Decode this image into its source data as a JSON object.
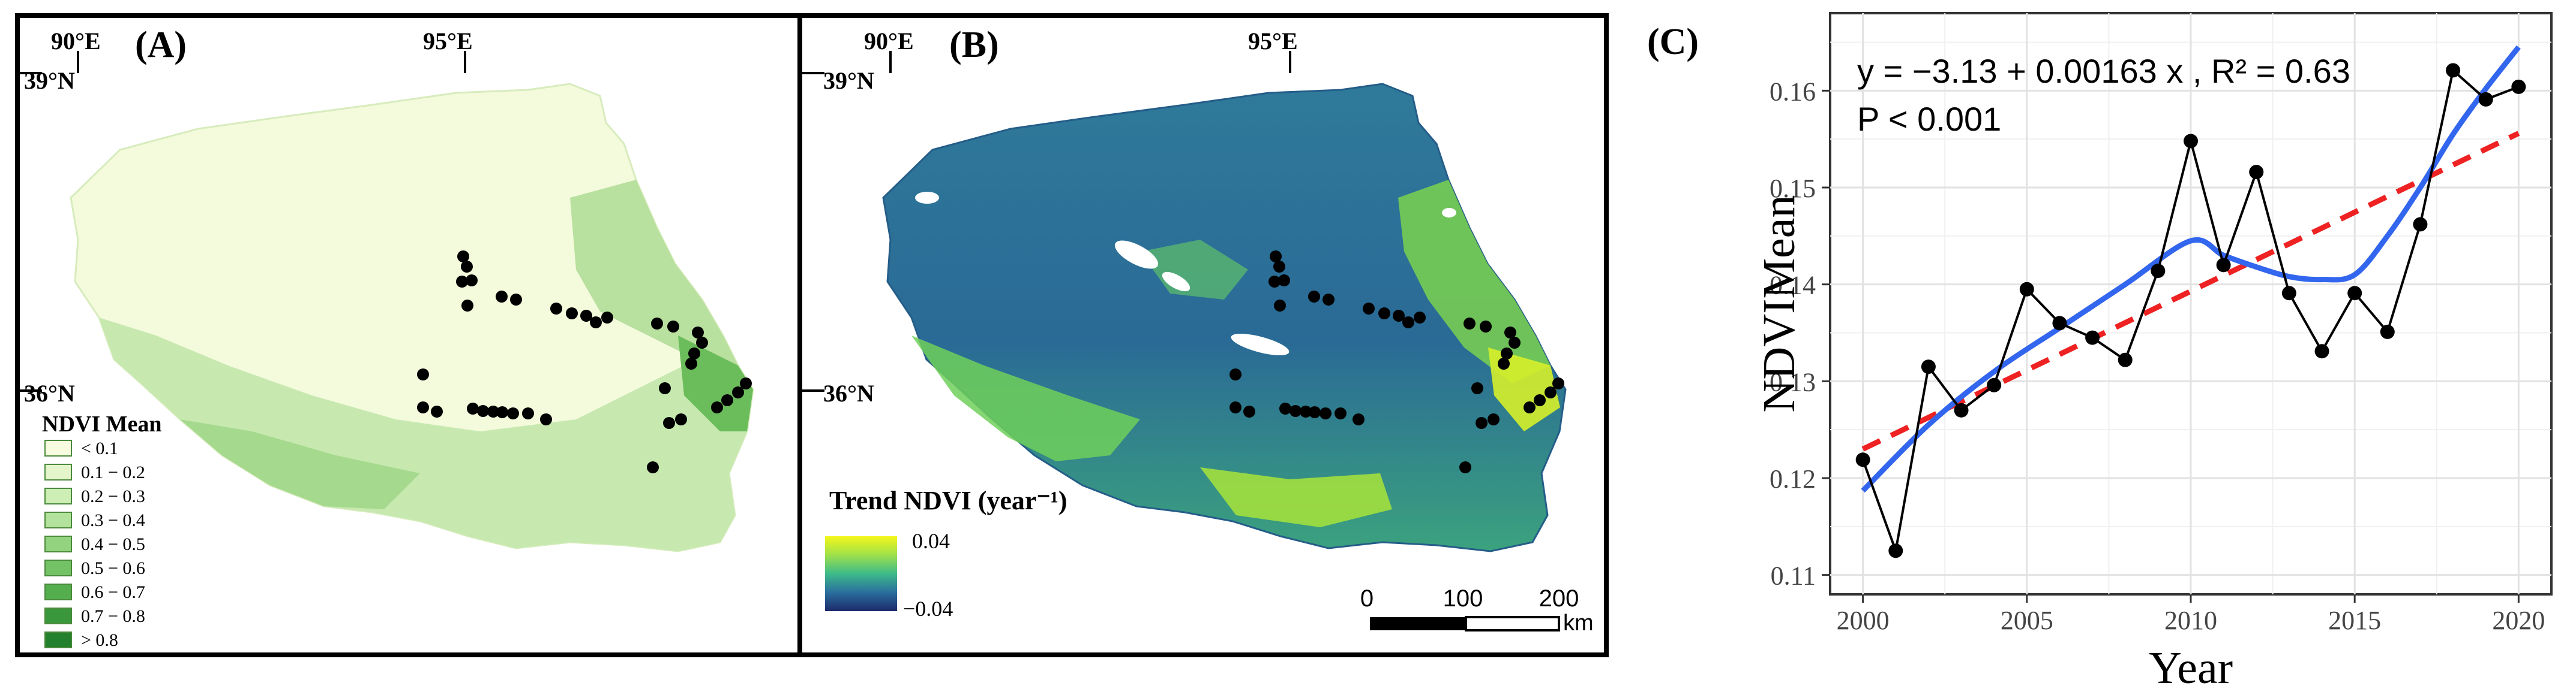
{
  "panel_a": {
    "label": "(A)",
    "lon_labels": [
      "90°E",
      "95°E"
    ],
    "lat_labels": [
      "39°N",
      "36°N"
    ],
    "legend": {
      "title": "NDVI Mean",
      "items": [
        "< 0.1",
        "0.1 − 0.2",
        "0.2 − 0.3",
        "0.3 − 0.4",
        "0.4 − 0.5",
        "0.5 − 0.6",
        "0.6 − 0.7",
        "0.7 − 0.8",
        "> 0.8"
      ],
      "colors": [
        "#f7fce0",
        "#e4f5cc",
        "#cdeeb5",
        "#b2e29b",
        "#93d27f",
        "#74c266",
        "#55ae4e",
        "#3a973c",
        "#23802c"
      ]
    }
  },
  "panel_b": {
    "label": "(B)",
    "lon_labels": [
      "90°E",
      "95°E"
    ],
    "lat_labels": [
      "39°N",
      "36°N"
    ],
    "legend": {
      "title": "Trend NDVI (year⁻¹)",
      "max_label": "0.04",
      "min_label": "−0.04"
    },
    "scalebar": {
      "ticks": [
        "0",
        "100",
        "200"
      ],
      "unit": "km"
    }
  },
  "colors": {
    "smooth_line": "#3366ee",
    "linear_fit": "#ee2222",
    "observed": "#000000"
  },
  "chart_data": {
    "type": "line",
    "panel_label": "(C)",
    "xlabel": "Year",
    "ylabel": "NDVIMean",
    "xlim": [
      1999,
      2021
    ],
    "ylim": [
      0.108,
      0.168
    ],
    "x_ticks": [
      "2000",
      "2005",
      "2010",
      "2015",
      "2020"
    ],
    "y_ticks": [
      "0.11",
      "0.12",
      "0.13",
      "0.14",
      "0.15",
      "0.16"
    ],
    "grid": true,
    "annotation_equation": "y = −3.13 + 0.00163 x , R² = 0.63",
    "annotation_p": "P < 0.001",
    "series": [
      {
        "kind": "observed",
        "x": [
          2000,
          2001,
          2002,
          2003,
          2004,
          2005,
          2006,
          2007,
          2008,
          2009,
          2010,
          2011,
          2012,
          2013,
          2014,
          2015,
          2016,
          2017,
          2018,
          2019,
          2020
        ],
        "y": [
          0.1219,
          0.1125,
          0.1315,
          0.127,
          0.1296,
          0.1395,
          0.136,
          0.1345,
          0.1322,
          0.1414,
          0.1548,
          0.142,
          0.1516,
          0.1391,
          0.1331,
          0.1391,
          0.1351,
          0.1462,
          0.1621,
          0.1591,
          0.1604
        ]
      },
      {
        "kind": "linear-fit",
        "x": [
          2000,
          2020
        ],
        "y": [
          0.123,
          0.1556
        ]
      },
      {
        "kind": "smooth",
        "x": [
          2000,
          2002,
          2004,
          2006,
          2008,
          2010,
          2011,
          2012,
          2013,
          2014,
          2015,
          2016,
          2017,
          2018,
          2019,
          2020
        ],
        "y": [
          0.1187,
          0.1255,
          0.131,
          0.1355,
          0.14,
          0.1445,
          0.143,
          0.1418,
          0.1408,
          0.1405,
          0.141,
          0.145,
          0.15,
          0.1555,
          0.1602,
          0.1645
        ]
      }
    ]
  }
}
